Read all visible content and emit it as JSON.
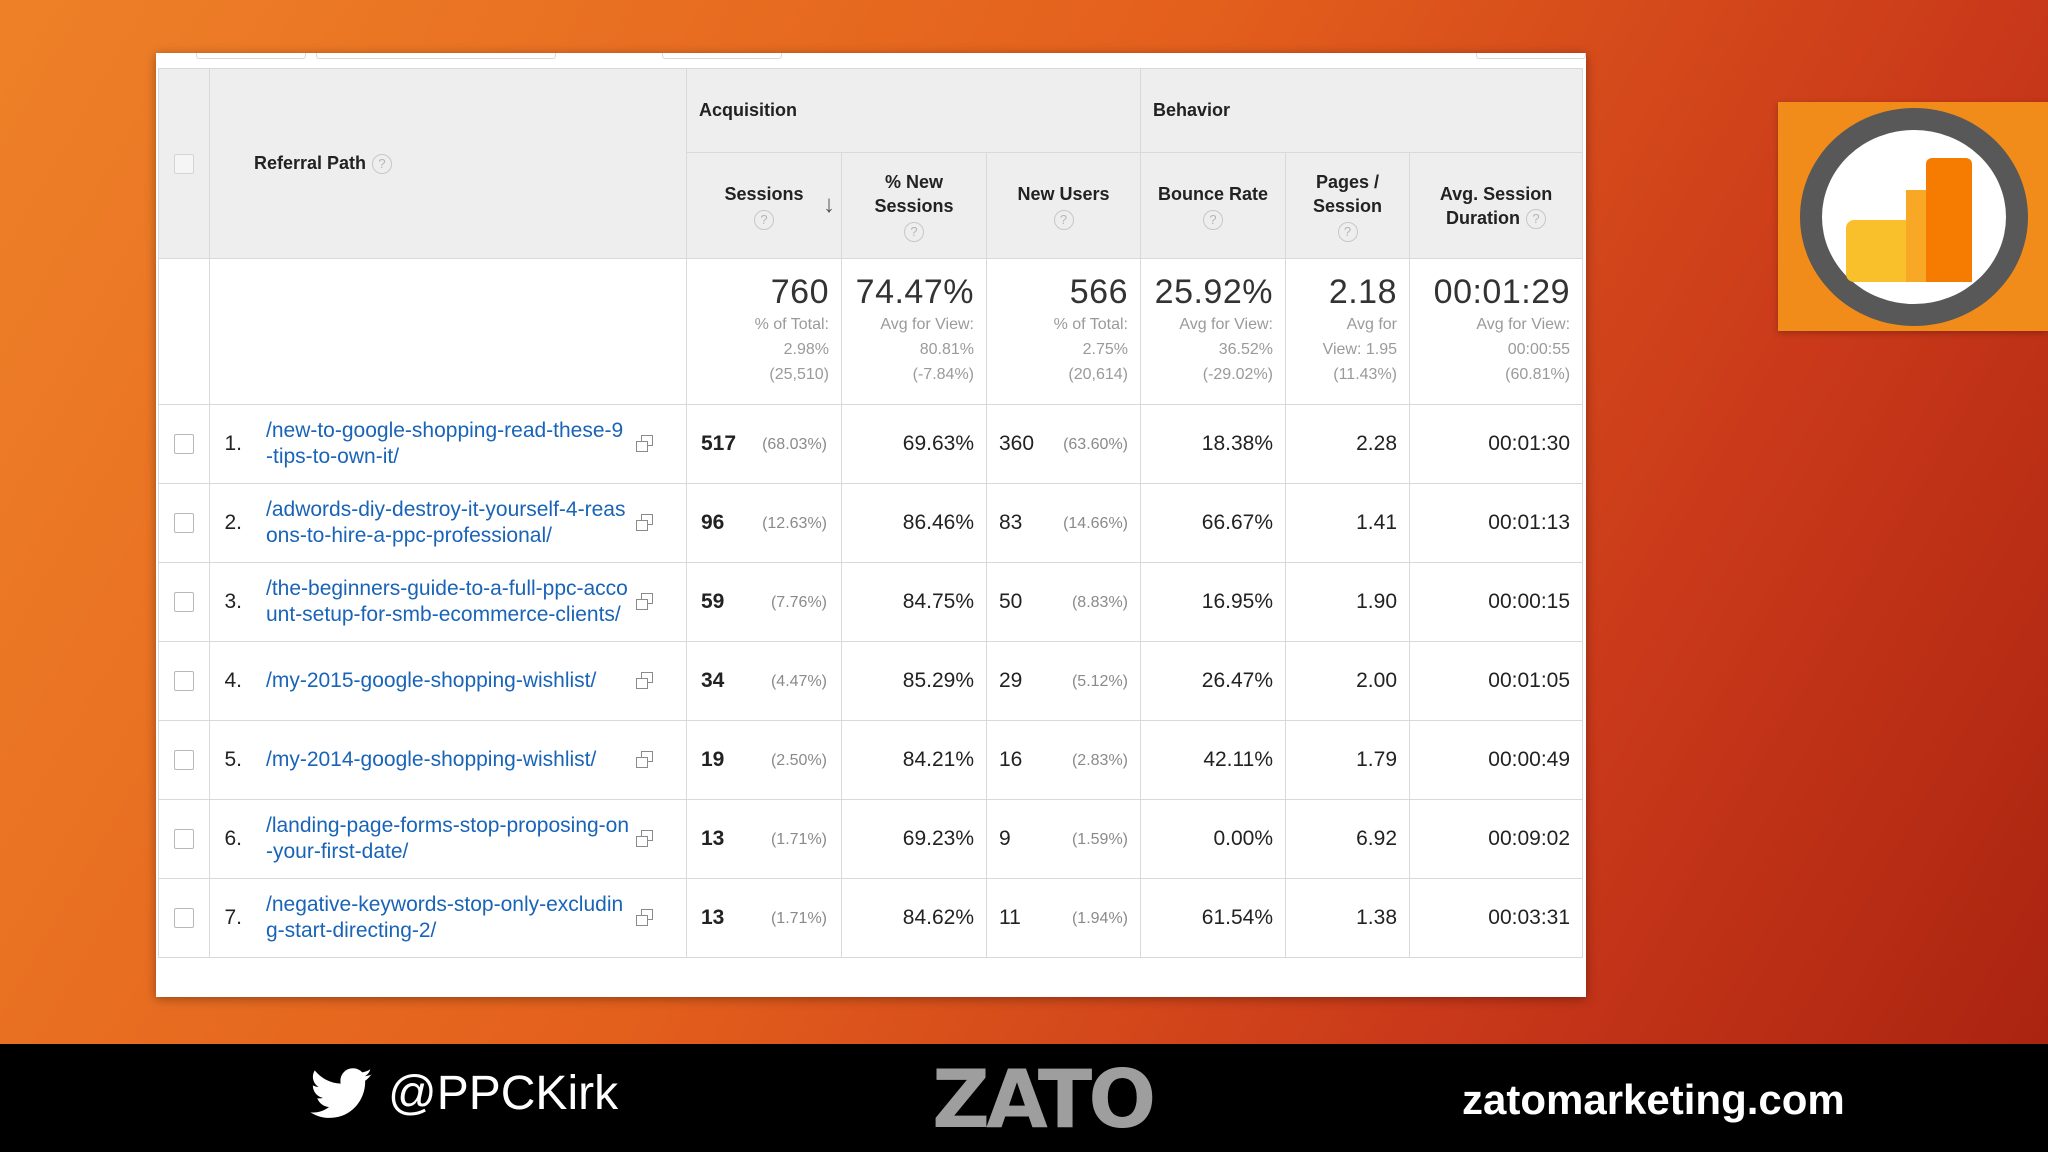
{
  "table": {
    "headers": {
      "referral_path": "Referral Path",
      "acquisition": "Acquisition",
      "behavior": "Behavior",
      "sessions": "Sessions",
      "pct_new_sessions_l1": "% New",
      "pct_new_sessions_l2": "Sessions",
      "new_users": "New Users",
      "bounce_rate": "Bounce Rate",
      "pages_session_l1": "Pages /",
      "pages_session_l2": "Session",
      "avg_duration_l1": "Avg. Session",
      "avg_duration_l2": "Duration",
      "help": "?"
    },
    "totals": {
      "sessions": {
        "value": "760",
        "l1": "% of Total:",
        "l2": "2.98%",
        "l3": "(25,510)"
      },
      "pct_new": {
        "value": "74.47%",
        "l1": "Avg for View:",
        "l2": "80.81%",
        "l3": "(-7.84%)"
      },
      "new_users": {
        "value": "566",
        "l1": "% of Total:",
        "l2": "2.75%",
        "l3": "(20,614)"
      },
      "bounce": {
        "value": "25.92%",
        "l1": "Avg for View:",
        "l2": "36.52%",
        "l3": "(-29.02%)"
      },
      "pages": {
        "value": "2.18",
        "l1": "Avg for",
        "l2": "View: 1.95",
        "l3": "(11.43%)"
      },
      "duration": {
        "value": "00:01:29",
        "l1": "Avg for View:",
        "l2": "00:00:55",
        "l3": "(60.81%)"
      }
    },
    "rows": [
      {
        "num": "1.",
        "path": "/new-to-google-shopping-read-these-9-tips-to-own-it/",
        "sessions": "517",
        "sessions_pct": "(68.03%)",
        "pct_new": "69.63%",
        "new_users": "360",
        "new_users_pct": "(63.60%)",
        "bounce": "18.38%",
        "pages": "2.28",
        "duration": "00:01:30"
      },
      {
        "num": "2.",
        "path": "/adwords-diy-destroy-it-yourself-4-reasons-to-hire-a-ppc-professional/",
        "sessions": "96",
        "sessions_pct": "(12.63%)",
        "pct_new": "86.46%",
        "new_users": "83",
        "new_users_pct": "(14.66%)",
        "bounce": "66.67%",
        "pages": "1.41",
        "duration": "00:01:13"
      },
      {
        "num": "3.",
        "path": "/the-beginners-guide-to-a-full-ppc-account-setup-for-smb-ecommerce-clients/",
        "sessions": "59",
        "sessions_pct": "(7.76%)",
        "pct_new": "84.75%",
        "new_users": "50",
        "new_users_pct": "(8.83%)",
        "bounce": "16.95%",
        "pages": "1.90",
        "duration": "00:00:15"
      },
      {
        "num": "4.",
        "path": "/my-2015-google-shopping-wishlist/",
        "sessions": "34",
        "sessions_pct": "(4.47%)",
        "pct_new": "85.29%",
        "new_users": "29",
        "new_users_pct": "(5.12%)",
        "bounce": "26.47%",
        "pages": "2.00",
        "duration": "00:01:05"
      },
      {
        "num": "5.",
        "path": "/my-2014-google-shopping-wishlist/",
        "sessions": "19",
        "sessions_pct": "(2.50%)",
        "pct_new": "84.21%",
        "new_users": "16",
        "new_users_pct": "(2.83%)",
        "bounce": "42.11%",
        "pages": "1.79",
        "duration": "00:00:49"
      },
      {
        "num": "6.",
        "path": "/landing-page-forms-stop-proposing-on-your-first-date/",
        "sessions": "13",
        "sessions_pct": "(1.71%)",
        "pct_new": "69.23%",
        "new_users": "9",
        "new_users_pct": "(1.59%)",
        "bounce": "0.00%",
        "pages": "6.92",
        "duration": "00:09:02"
      },
      {
        "num": "7.",
        "path": "/negative-keywords-stop-only-excluding-start-directing-2/",
        "sessions": "13",
        "sessions_pct": "(1.71%)",
        "pct_new": "84.62%",
        "new_users": "11",
        "new_users_pct": "(1.94%)",
        "bounce": "61.54%",
        "pages": "1.38",
        "duration": "00:03:31"
      }
    ]
  },
  "footer": {
    "twitter_handle": "@PPCKirk",
    "brand": "ZATO",
    "website": "zatomarketing.com"
  },
  "icons": {
    "twitter": "twitter-bird-icon",
    "logo": "google-analytics-logo-icon",
    "external": "open-external-icon"
  },
  "colors": {
    "link": "#1a64b8",
    "background_orange": "#ee8128",
    "ga_orange": "#f18c1b"
  }
}
